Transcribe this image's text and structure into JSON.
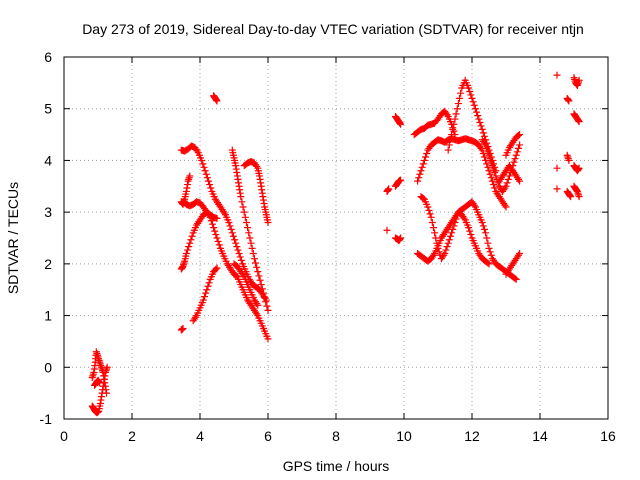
{
  "chart_data": {
    "type": "scatter",
    "title": "Day 273 of 2019, Sidereal Day-to-day VTEC variation (SDTVAR) for receiver ntjn",
    "xlabel": "GPS time / hours",
    "ylabel": "SDTVAR / TECUs",
    "xlim": [
      0,
      16
    ],
    "ylim": [
      -1,
      6
    ],
    "xticks": [
      0,
      2,
      4,
      6,
      8,
      10,
      12,
      14,
      16
    ],
    "yticks": [
      -1,
      0,
      1,
      2,
      3,
      4,
      5,
      6
    ],
    "grid": true,
    "marker": "+",
    "color": "#ff0000",
    "segments": [
      {
        "x": [
          0.83,
          0.88,
          0.92,
          0.95,
          1.0,
          1.05,
          1.1,
          1.15,
          1.2,
          1.25
        ],
        "y": [
          -0.2,
          -0.1,
          0.1,
          0.3,
          0.2,
          0.1,
          0.0,
          -0.1,
          -0.3,
          -0.5
        ]
      },
      {
        "x": [
          0.83,
          0.88,
          0.92,
          0.97,
          1.02,
          1.07,
          1.12,
          1.17,
          1.22,
          1.27
        ],
        "y": [
          -0.75,
          -0.8,
          -0.85,
          -0.88,
          -0.85,
          -0.7,
          -0.5,
          -0.3,
          -0.1,
          0.0
        ]
      },
      {
        "x": [
          0.9,
          0.95,
          1.0,
          1.05
        ],
        "y": [
          -0.35,
          -0.3,
          -0.25,
          -0.3
        ]
      },
      {
        "x": [
          3.45,
          3.5
        ],
        "y": [
          0.72,
          0.75
        ]
      },
      {
        "x": [
          3.45,
          3.5,
          3.55,
          3.6,
          3.65,
          3.7
        ],
        "y": [
          3.2,
          3.15,
          3.25,
          3.4,
          3.6,
          3.7
        ]
      },
      {
        "x": [
          3.45,
          3.5,
          3.55,
          3.6,
          3.7,
          3.8,
          3.9,
          4.0,
          4.1,
          4.2,
          4.3,
          4.4,
          4.5,
          4.6,
          4.7,
          4.8,
          4.9,
          5.0,
          5.1,
          5.2,
          5.3,
          5.4,
          5.5,
          5.6,
          5.7,
          5.8,
          5.9,
          6.0
        ],
        "y": [
          1.9,
          1.95,
          2.05,
          2.2,
          2.4,
          2.6,
          2.75,
          2.85,
          2.95,
          3.0,
          2.9,
          2.7,
          2.5,
          2.3,
          2.15,
          2.0,
          1.9,
          1.8,
          1.75,
          1.6,
          1.45,
          1.3,
          1.2,
          1.1,
          1.0,
          0.85,
          0.7,
          0.55
        ]
      },
      {
        "x": [
          3.45,
          3.55,
          3.65,
          3.75,
          3.85,
          3.95,
          4.05,
          4.15,
          4.25,
          4.35,
          4.45,
          4.55,
          4.65,
          4.75,
          4.85,
          4.95,
          5.05,
          5.15,
          5.25,
          5.35,
          5.45,
          5.55,
          5.65,
          5.75,
          5.85,
          5.95
        ],
        "y": [
          4.2,
          4.18,
          4.22,
          4.28,
          4.25,
          4.15,
          4.0,
          3.8,
          3.6,
          3.4,
          3.25,
          3.15,
          3.05,
          2.95,
          2.8,
          2.6,
          2.4,
          2.2,
          2.0,
          1.85,
          1.7,
          1.6,
          1.55,
          1.5,
          1.4,
          1.3
        ]
      },
      {
        "x": [
          3.5,
          3.6,
          3.7,
          3.8,
          3.9,
          4.0,
          4.1,
          4.2,
          4.3,
          4.4,
          4.5
        ],
        "y": [
          3.2,
          3.15,
          3.12,
          3.15,
          3.2,
          3.18,
          3.1,
          3.0,
          2.95,
          2.9,
          2.88
        ]
      },
      {
        "x": [
          3.8,
          3.9,
          4.0,
          4.1,
          4.2,
          4.3,
          4.4,
          4.5
        ],
        "y": [
          0.9,
          1.0,
          1.15,
          1.3,
          1.5,
          1.7,
          1.85,
          1.92
        ]
      },
      {
        "x": [
          4.4,
          4.45,
          4.5
        ],
        "y": [
          5.25,
          5.2,
          5.15
        ]
      },
      {
        "x": [
          4.95,
          5.0,
          5.05,
          5.1,
          5.15,
          5.2,
          5.3,
          5.4,
          5.5,
          5.6,
          5.7,
          5.8,
          5.9,
          6.0
        ],
        "y": [
          4.2,
          4.05,
          3.9,
          3.7,
          3.5,
          3.3,
          3.0,
          2.7,
          2.4,
          2.1,
          1.85,
          1.6,
          1.35,
          1.1
        ]
      },
      {
        "x": [
          5.3,
          5.4,
          5.5,
          5.6,
          5.7,
          5.75,
          5.8,
          5.85,
          5.9,
          5.95,
          6.0
        ],
        "y": [
          3.9,
          3.95,
          3.98,
          3.95,
          3.85,
          3.7,
          3.5,
          3.3,
          3.1,
          2.95,
          2.8
        ]
      },
      {
        "x": [
          5.0,
          5.1,
          5.2,
          5.3,
          5.4,
          5.5,
          5.6,
          5.7
        ],
        "y": [
          2.0,
          1.95,
          1.85,
          1.75,
          1.6,
          1.45,
          1.3,
          1.2
        ]
      },
      {
        "x": [
          9.5,
          9.55
        ],
        "y": [
          3.4,
          3.45
        ]
      },
      {
        "x": [
          9.5
        ],
        "y": [
          2.65
        ]
      },
      {
        "x": [
          9.75,
          9.8,
          9.85,
          9.9
        ],
        "y": [
          4.85,
          4.8,
          4.75,
          4.7
        ]
      },
      {
        "x": [
          9.75,
          9.8,
          9.85,
          9.9
        ],
        "y": [
          3.5,
          3.55,
          3.6,
          3.62
        ]
      },
      {
        "x": [
          9.75,
          9.8,
          9.85,
          9.9
        ],
        "y": [
          2.5,
          2.48,
          2.45,
          2.5
        ]
      },
      {
        "x": [
          10.3,
          10.4,
          10.5,
          10.6,
          10.7,
          10.8,
          10.9,
          11.0,
          11.1,
          11.2,
          11.3,
          11.4,
          11.5
        ],
        "y": [
          4.5,
          4.55,
          4.6,
          4.62,
          4.68,
          4.7,
          4.72,
          4.8,
          4.9,
          4.95,
          4.85,
          4.7,
          4.5
        ]
      },
      {
        "x": [
          10.4,
          10.5,
          10.6,
          10.7,
          10.8,
          10.9,
          11.0,
          11.1,
          11.2,
          11.3,
          11.4,
          11.5,
          11.6,
          11.7,
          11.8,
          11.9,
          12.0,
          12.1,
          12.2,
          12.3,
          12.4,
          12.5,
          12.6,
          12.7,
          12.8,
          12.9,
          13.0
        ],
        "y": [
          3.6,
          3.8,
          4.0,
          4.2,
          4.3,
          4.35,
          4.4,
          4.38,
          4.35,
          4.4,
          4.42,
          4.4,
          4.38,
          4.4,
          4.42,
          4.4,
          4.38,
          4.35,
          4.3,
          4.2,
          4.0,
          3.8,
          3.6,
          3.4,
          3.3,
          3.2,
          3.1
        ]
      },
      {
        "x": [
          10.4,
          10.5,
          10.6,
          10.7,
          10.8,
          10.9,
          11.0,
          11.1,
          11.2,
          11.3,
          11.4,
          11.5,
          11.6,
          11.7,
          11.8,
          11.9,
          12.0,
          12.1,
          12.2,
          12.3,
          12.4,
          12.5,
          12.6,
          12.7,
          12.8,
          12.9,
          13.0,
          13.1,
          13.2,
          13.3
        ],
        "y": [
          2.2,
          2.15,
          2.1,
          2.05,
          2.1,
          2.2,
          2.35,
          2.5,
          2.6,
          2.7,
          2.8,
          2.9,
          3.0,
          3.05,
          3.1,
          3.15,
          3.2,
          3.1,
          2.95,
          2.8,
          2.6,
          2.3,
          2.1,
          2.0,
          1.95,
          1.9,
          1.85,
          1.8,
          1.75,
          1.7
        ]
      },
      {
        "x": [
          10.5,
          10.6,
          10.7,
          10.8,
          10.9,
          11.0,
          11.1,
          11.2,
          11.3,
          11.4,
          11.5,
          11.6,
          11.7,
          11.8,
          11.9,
          12.0,
          12.1,
          12.2,
          12.3,
          12.4,
          12.5
        ],
        "y": [
          3.3,
          3.25,
          3.1,
          2.9,
          2.6,
          2.3,
          2.1,
          2.2,
          2.4,
          2.6,
          2.8,
          3.0,
          2.95,
          2.85,
          2.7,
          2.5,
          2.35,
          2.2,
          2.1,
          2.05,
          2.0
        ]
      },
      {
        "x": [
          11.3,
          11.4,
          11.5,
          11.6,
          11.7,
          11.8,
          11.9,
          12.0,
          12.1,
          12.2,
          12.3,
          12.4,
          12.5,
          12.6,
          12.7
        ],
        "y": [
          4.2,
          4.5,
          4.8,
          5.1,
          5.4,
          5.55,
          5.4,
          5.2,
          5.0,
          4.8,
          4.6,
          4.4,
          4.2,
          4.0,
          3.8
        ]
      },
      {
        "x": [
          12.3,
          12.4,
          12.5,
          12.6,
          12.7,
          12.8,
          12.9,
          13.0,
          13.1,
          13.2,
          13.3,
          13.4
        ],
        "y": [
          4.4,
          4.3,
          4.1,
          3.9,
          3.7,
          3.5,
          3.4,
          3.5,
          3.7,
          3.9,
          4.1,
          4.3
        ]
      },
      {
        "x": [
          12.8,
          12.9,
          13.0,
          13.1,
          13.2,
          13.3,
          13.4
        ],
        "y": [
          3.6,
          3.7,
          3.8,
          3.9,
          3.8,
          3.7,
          3.6
        ]
      },
      {
        "x": [
          13.0,
          13.1,
          13.2,
          13.3,
          13.4
        ],
        "y": [
          4.1,
          4.25,
          4.35,
          4.45,
          4.5
        ]
      },
      {
        "x": [
          13.0,
          13.1,
          13.2,
          13.3,
          13.4
        ],
        "y": [
          1.8,
          1.9,
          2.0,
          2.1,
          2.2
        ]
      },
      {
        "x": [
          14.5
        ],
        "y": [
          5.65
        ]
      },
      {
        "x": [
          14.5
        ],
        "y": [
          3.85
        ]
      },
      {
        "x": [
          14.5
        ],
        "y": [
          3.45
        ]
      },
      {
        "x": [
          14.8,
          14.85
        ],
        "y": [
          4.1,
          4.0
        ]
      },
      {
        "x": [
          14.8,
          14.85
        ],
        "y": [
          5.2,
          5.15
        ]
      },
      {
        "x": [
          14.8,
          14.85,
          14.9
        ],
        "y": [
          3.4,
          3.35,
          3.3
        ]
      },
      {
        "x": [
          15.0,
          15.05,
          15.1,
          15.15
        ],
        "y": [
          5.6,
          5.5,
          5.45,
          5.55
        ]
      },
      {
        "x": [
          15.0,
          15.05,
          15.1,
          15.15
        ],
        "y": [
          4.9,
          4.85,
          4.8,
          4.75
        ]
      },
      {
        "x": [
          15.0,
          15.05,
          15.1,
          15.15
        ],
        "y": [
          3.9,
          3.85,
          3.8,
          3.85
        ]
      },
      {
        "x": [
          15.0,
          15.05,
          15.1,
          15.15
        ],
        "y": [
          3.5,
          3.45,
          3.4,
          3.3
        ]
      }
    ]
  }
}
